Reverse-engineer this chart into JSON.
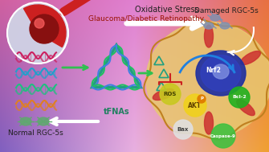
{
  "text_oxidative_stress": "Oxidative Stress",
  "text_glaucoma": "Glaucoma/Diabetic Retinopathy",
  "text_damaged_rgc": "Damaged RGC-5s",
  "text_normal_rgc": "Normal RGC-5s",
  "text_tfnas": "tFNAs",
  "text_ros": "ROS",
  "text_akt": "AKT",
  "text_nrf2": "Nrf2",
  "text_bax": "Bax",
  "text_bcl2": "Bcl-2",
  "text_caspase": "Caspase-9",
  "text_p": "P",
  "dna_colors": [
    "#cc2060",
    "#20a0cc",
    "#20c080",
    "#e08020"
  ],
  "figsize": [
    3.35,
    1.89
  ],
  "dpi": 100
}
